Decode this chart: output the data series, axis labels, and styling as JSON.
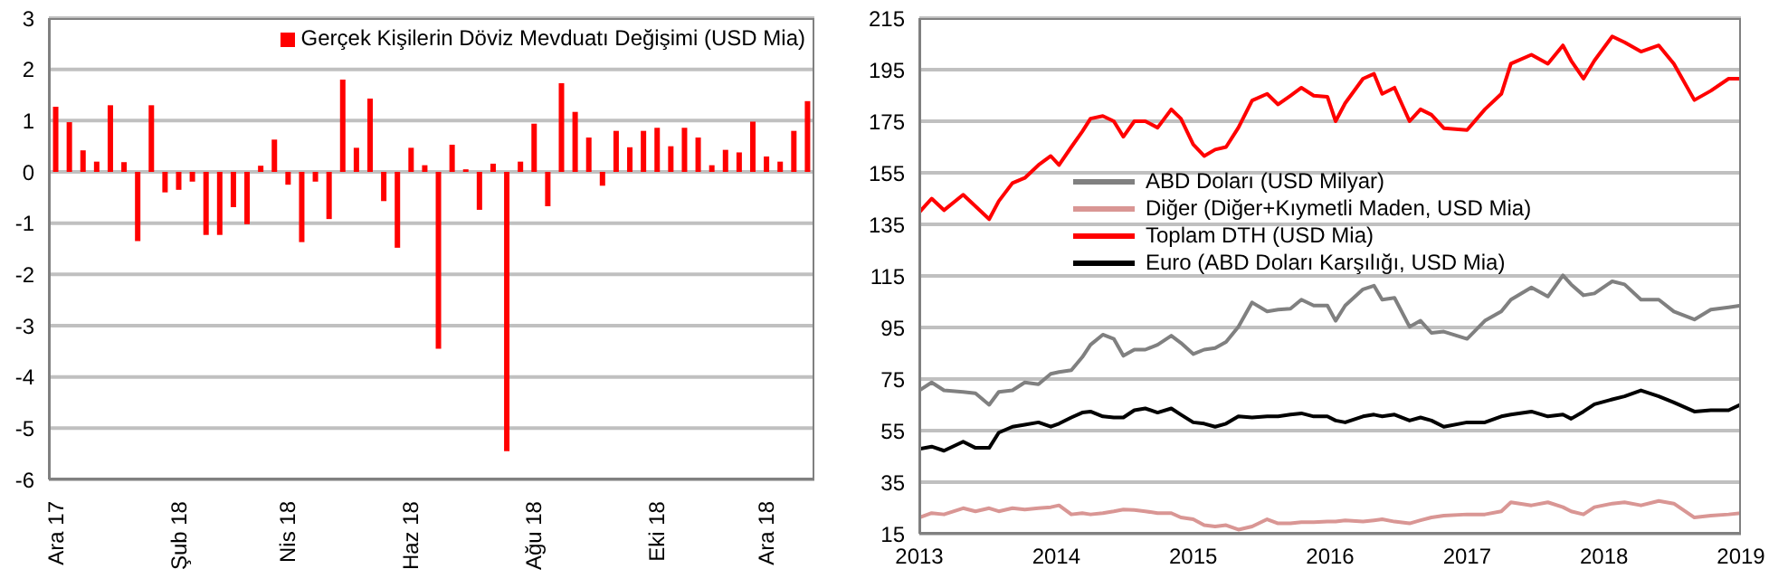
{
  "chart_data": [
    {
      "type": "bar",
      "categories": [
        "Ara 17",
        null,
        null,
        null,
        null,
        null,
        null,
        null,
        null,
        "Şub 18",
        null,
        null,
        null,
        null,
        null,
        null,
        null,
        "Nis 18",
        null,
        null,
        null,
        null,
        null,
        null,
        null,
        null,
        "Haz 18",
        null,
        null,
        null,
        null,
        null,
        null,
        null,
        null,
        "Ağu 18",
        null,
        null,
        null,
        null,
        null,
        null,
        null,
        null,
        "Eki 18",
        null,
        null,
        null,
        null,
        null,
        null,
        null,
        "Ara 18",
        null,
        null,
        null
      ],
      "series": [
        {
          "name": "Gerçek Kişilerin Döviz Mevduatı Değişimi (USD Mia)",
          "color": "#ff0000",
          "values": [
            1.27,
            0.97,
            0.42,
            0.2,
            1.3,
            0.19,
            -1.35,
            1.3,
            -0.4,
            -0.35,
            -0.19,
            -1.23,
            -1.23,
            -0.69,
            -1.02,
            0.12,
            0.63,
            -0.25,
            -1.37,
            -0.19,
            -0.92,
            1.8,
            0.47,
            1.43,
            -0.57,
            -1.48,
            0.47,
            0.13,
            -3.45,
            0.53,
            0.05,
            -0.74,
            0.16,
            -5.45,
            0.2,
            0.94,
            -0.67,
            1.73,
            1.17,
            0.67,
            -0.27,
            0.8,
            0.48,
            0.8,
            0.86,
            0.5,
            0.86,
            0.67,
            0.13,
            0.43,
            0.38,
            0.98,
            0.3,
            0.2,
            0.8,
            1.38
          ]
        }
      ],
      "ylim": [
        -6,
        3
      ],
      "yticks": [
        -6,
        -5,
        -4,
        -3,
        -2,
        -1,
        0,
        1,
        2,
        3
      ],
      "grid": "y",
      "legend": "top right"
    },
    {
      "type": "line",
      "x": [
        2013.0,
        2013.09,
        2013.18,
        2013.32,
        2013.41,
        2013.51,
        2013.58,
        2013.68,
        2013.77,
        2013.87,
        2013.96,
        2014.02,
        2014.11,
        2014.19,
        2014.25,
        2014.34,
        2014.42,
        2014.49,
        2014.57,
        2014.65,
        2014.74,
        2014.84,
        2014.91,
        2015.0,
        2015.08,
        2015.16,
        2015.24,
        2015.33,
        2015.43,
        2015.54,
        2015.62,
        2015.71,
        2015.79,
        2015.88,
        2015.98,
        2016.04,
        2016.11,
        2016.24,
        2016.32,
        2016.38,
        2016.47,
        2016.58,
        2016.66,
        2016.74,
        2016.83,
        2017.0,
        2017.13,
        2017.25,
        2017.32,
        2017.47,
        2017.59,
        2017.7,
        2017.76,
        2017.85,
        2017.93,
        2018.06,
        2018.15,
        2018.27,
        2018.4,
        2018.51,
        2018.66,
        2018.78,
        2018.91,
        2019.0
      ],
      "series": [
        {
          "name": "ABD Doları (USD Milyar)",
          "color": "#808080",
          "values": [
            70.6,
            73.7,
            70.6,
            70,
            69.5,
            65,
            70,
            70.6,
            73.7,
            73,
            77,
            77.7,
            78.4,
            83.5,
            88.3,
            92.2,
            90.6,
            84,
            86.4,
            86.4,
            88.3,
            91.8,
            89,
            84.7,
            86.4,
            87,
            89.4,
            95.3,
            104.7,
            101.2,
            101.9,
            102.3,
            105.8,
            103.5,
            103.5,
            97.6,
            103.5,
            109.8,
            111.2,
            105.8,
            106.5,
            95.3,
            97.6,
            92.9,
            93.4,
            90.6,
            97.6,
            101.2,
            105.8,
            110.5,
            107,
            115.2,
            111.7,
            107.5,
            108.2,
            112.9,
            111.7,
            105.8,
            105.8,
            101.2,
            98.1,
            101.9,
            102.8,
            103.5
          ]
        },
        {
          "name": "Diğer (Diğer+Kıymetli Maden, USD Mia)",
          "color": "#d99694",
          "values": [
            21.3,
            23,
            22.5,
            24.9,
            23.7,
            24.9,
            23.7,
            24.9,
            24.4,
            24.9,
            25.3,
            26,
            22.5,
            23,
            22.5,
            23,
            23.7,
            24.4,
            24.2,
            23.7,
            23,
            23,
            21.3,
            20.6,
            18.3,
            17.8,
            18.3,
            16.6,
            17.8,
            20.6,
            19,
            19,
            19.5,
            19.5,
            19.7,
            19.7,
            20.2,
            19.7,
            20.2,
            20.6,
            19.7,
            19,
            20.2,
            21.3,
            22,
            22.5,
            22.5,
            23.7,
            27.2,
            26,
            27.2,
            25.3,
            23.7,
            22.5,
            25.3,
            26.7,
            27.2,
            26,
            27.7,
            26.7,
            21.3,
            22,
            22.5,
            23
          ]
        },
        {
          "name": "Toplam DTH (USD Mia)",
          "color": "#ff0000",
          "values": [
            139.7,
            145,
            140.5,
            146.5,
            142,
            137,
            144,
            151,
            153,
            158,
            161.5,
            158,
            165,
            171,
            176,
            177,
            175,
            169,
            175,
            175,
            172.5,
            179.6,
            176,
            166,
            161.5,
            164,
            165,
            172.5,
            183,
            185.6,
            181.5,
            184.9,
            188,
            184.9,
            184.5,
            175,
            182,
            191.5,
            193.4,
            185.6,
            188,
            175,
            179.6,
            177.5,
            172.3,
            171.6,
            179.6,
            185.6,
            197.3,
            200.8,
            197.3,
            204.4,
            198.5,
            191.5,
            198.5,
            207.9,
            205.6,
            202,
            204.4,
            197.3,
            183.2,
            186.8,
            191.5,
            191.5
          ]
        },
        {
          "name": "Euro (ABD Doları Karşılığı, USD Mia)",
          "color": "#000000",
          "values": [
            47.9,
            48.8,
            47.2,
            50.7,
            48.3,
            48.3,
            54.2,
            56.5,
            57.3,
            58.2,
            56.5,
            57.7,
            60.1,
            62,
            62.4,
            60.5,
            60.1,
            60.1,
            62.9,
            63.6,
            62,
            63.6,
            61.2,
            58.2,
            57.7,
            56.5,
            57.7,
            60.5,
            60.1,
            60.5,
            60.5,
            61.2,
            61.7,
            60.5,
            60.5,
            58.9,
            58.2,
            60.5,
            61.2,
            60.5,
            61.2,
            58.9,
            60.1,
            58.9,
            56.5,
            58.2,
            58.2,
            60.5,
            61.2,
            62.4,
            60.5,
            61.2,
            59.6,
            62.4,
            65.2,
            67.1,
            68.3,
            70.6,
            68.3,
            65.9,
            62.4,
            62.9,
            62.9,
            65.2
          ]
        }
      ],
      "xlim": [
        2013,
        2019
      ],
      "xticks": [
        2013,
        2014,
        2015,
        2016,
        2017,
        2018,
        2019
      ],
      "ylim": [
        15,
        215
      ],
      "yticks": [
        15,
        35,
        55,
        75,
        95,
        115,
        135,
        155,
        175,
        195,
        215
      ],
      "grid": "y",
      "legend": "left",
      "marker": "none",
      "line_style": "solid"
    }
  ]
}
